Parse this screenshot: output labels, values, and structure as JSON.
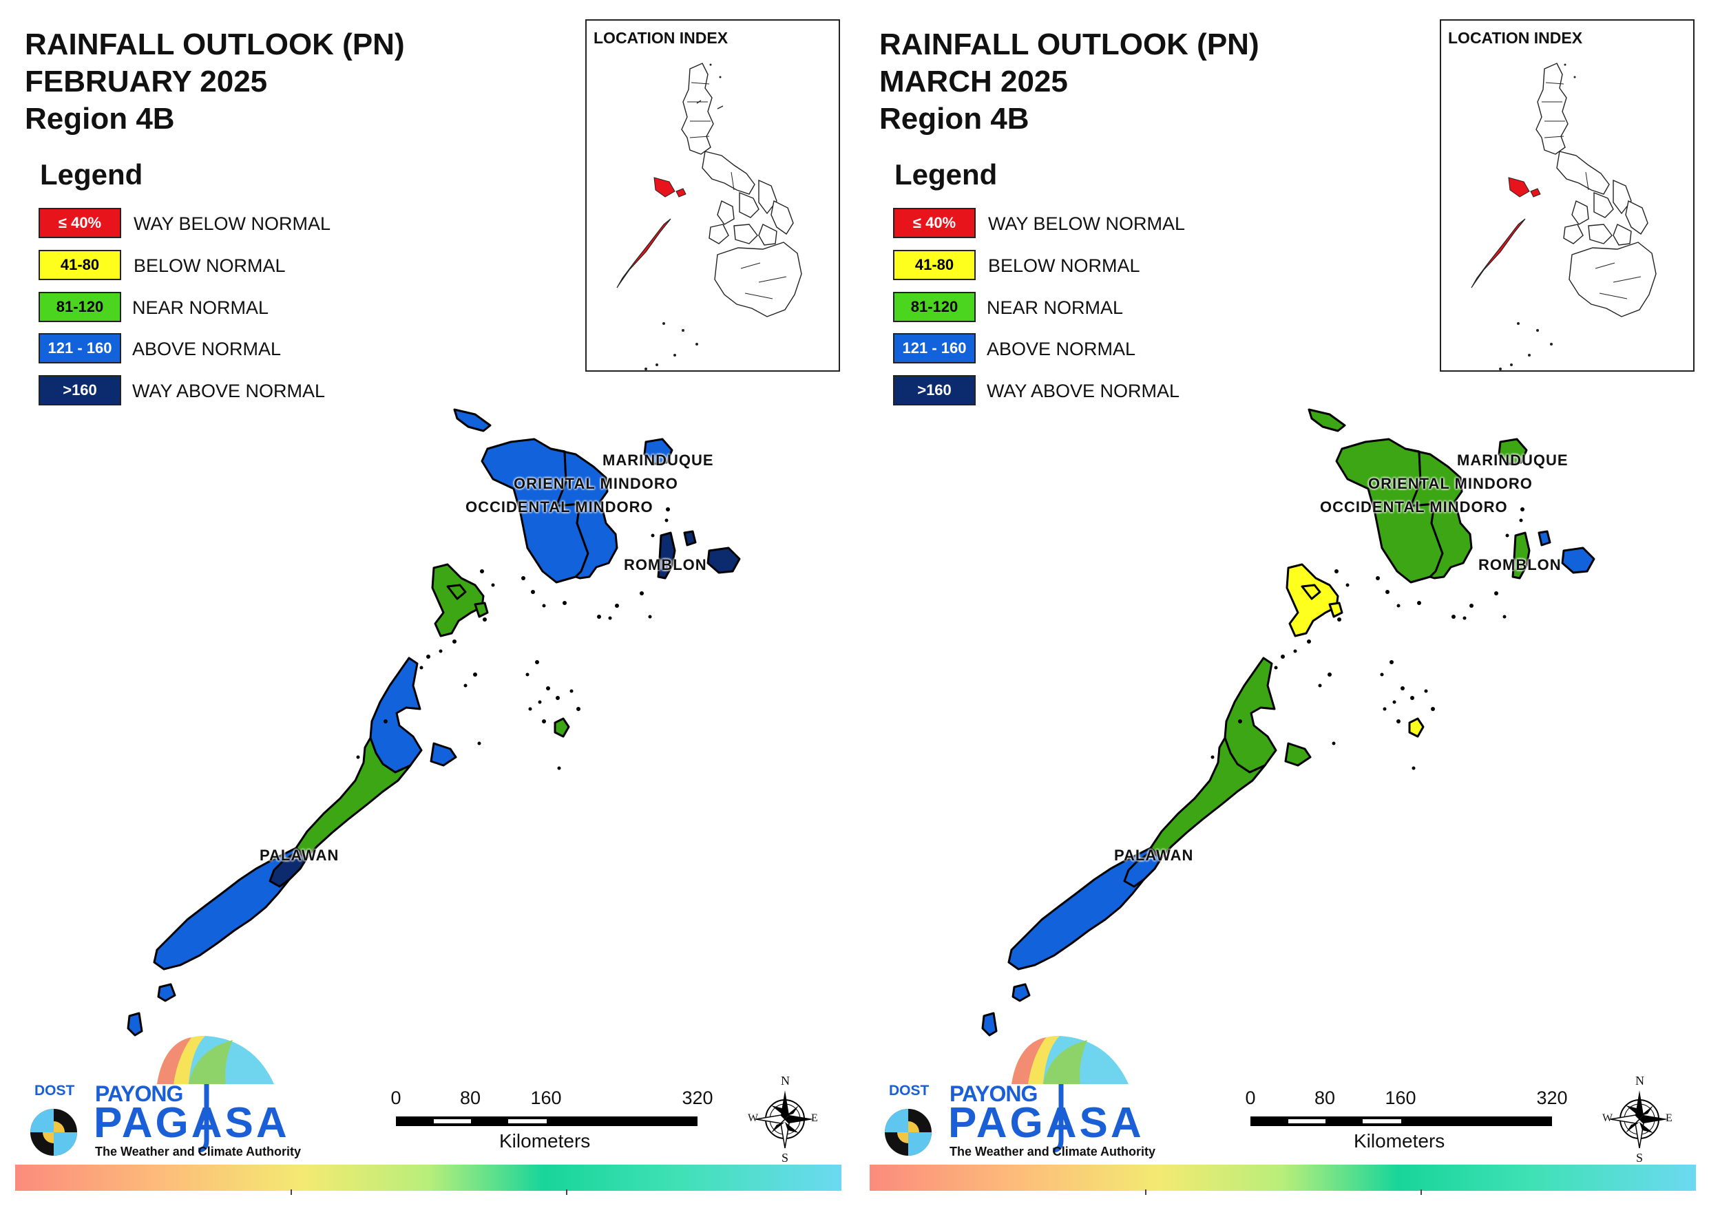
{
  "colors": {
    "way_below": "#e8141c",
    "below": "#ffff1e",
    "near": "#3ca614",
    "near_legend": "#4cd51e",
    "above": "#1262dc",
    "way_above": "#0c2a6e"
  },
  "legend": {
    "title": "Legend",
    "items": [
      {
        "range": "≤ 40%",
        "label": "WAY BELOW NORMAL",
        "color": "#e8141c",
        "text_color": "#ffffff"
      },
      {
        "range": "41-80",
        "label": "BELOW NORMAL",
        "color": "#ffff1e",
        "text_color": "#000000"
      },
      {
        "range": "81-120",
        "label": "NEAR NORMAL",
        "color": "#4cd51e",
        "text_color": "#000000"
      },
      {
        "range": "121 - 160",
        "label": "ABOVE NORMAL",
        "color": "#1262dc",
        "text_color": "#ffffff"
      },
      {
        "range": ">160",
        "label": "WAY ABOVE NORMAL",
        "color": "#0c2a6e",
        "text_color": "#ffffff"
      }
    ]
  },
  "inset": {
    "title": "LOCATION INDEX"
  },
  "place_labels": {
    "marinduque": "MARINDUQUE",
    "oriental_mindoro": "ORIENTAL MINDORO",
    "occidental_mindoro": "OCCIDENTAL MINDORO",
    "romblon": "ROMBLON",
    "palawan": "PALAWAN"
  },
  "scale": {
    "ticks": [
      "0",
      "80",
      "160",
      "320"
    ],
    "unit": "Kilometers"
  },
  "compass": {
    "n": "N",
    "s": "S",
    "e": "E",
    "w": "W"
  },
  "logo": {
    "dost": "DOST",
    "payong": "PAYONG",
    "pagasa": "PAGASA",
    "tagline": "The Weather and Climate Authority"
  },
  "panels": [
    {
      "title_line1": "RAINFALL OUTLOOK (PN)",
      "title_line2": "FEBRUARY 2025",
      "title_line3": "Region 4B",
      "provinces": {
        "occidental_mindoro": "above",
        "oriental_mindoro": "above",
        "marinduque": "above",
        "romblon": "way_above",
        "palawan_north": "near",
        "palawan_north_islands": "near",
        "palawan_central": "above",
        "palawan_mid": "near",
        "palawan_south": "above",
        "palawan_patch": "way_above",
        "cuyo": "near"
      }
    },
    {
      "title_line1": "RAINFALL OUTLOOK (PN)",
      "title_line2": "MARCH 2025",
      "title_line3": "Region 4B",
      "provinces": {
        "occidental_mindoro": "near",
        "oriental_mindoro": "near",
        "marinduque": "near",
        "romblon": "near",
        "palawan_north": "below",
        "palawan_north_islands": "below",
        "palawan_central": "near",
        "palawan_mid": "near",
        "palawan_south": "above",
        "palawan_patch": "above",
        "cuyo": "below"
      }
    }
  ]
}
